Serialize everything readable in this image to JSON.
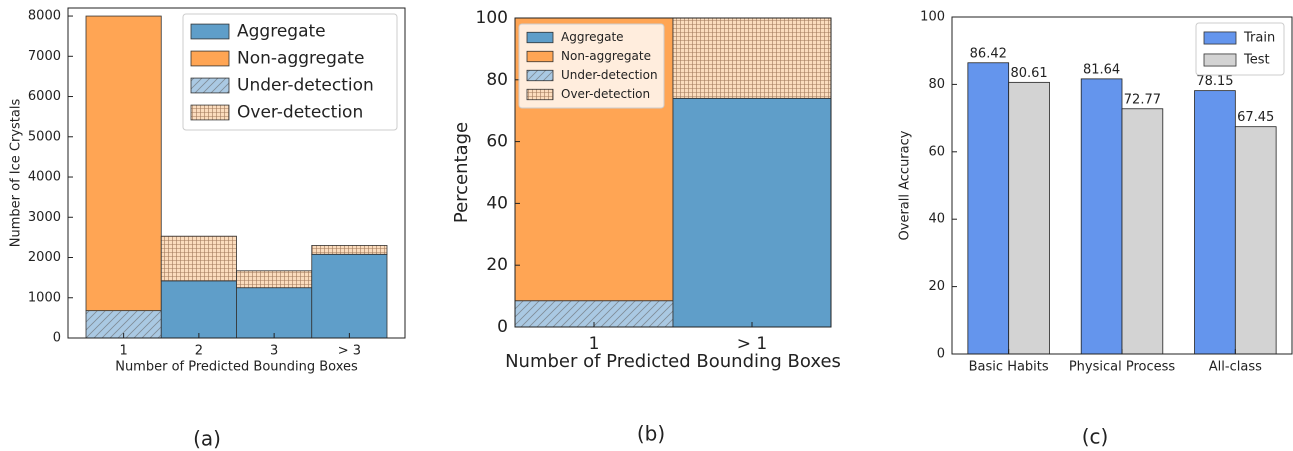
{
  "chart_data": [
    {
      "type": "bar",
      "stacked": true,
      "caption": "(a)",
      "x_label": "Number of Predicted Bounding Boxes",
      "y_label": "Number of Ice Crystals",
      "categories": [
        "1",
        "2",
        "3",
        "> 3"
      ],
      "series": [
        {
          "name": "Aggregate",
          "color": "#5f9ec9",
          "values": [
            null,
            1420,
            1250,
            2080
          ]
        },
        {
          "name": "Non-aggregate",
          "color": "#ffa554",
          "values": [
            7320,
            null,
            null,
            null
          ]
        },
        {
          "name": "Under-detection",
          "color": "#aac9e3",
          "hatch": "diagonal",
          "values": [
            680,
            null,
            null,
            null
          ]
        },
        {
          "name": "Over-detection",
          "color": "#fbdcbd",
          "hatch": "grid",
          "values": [
            null,
            1110,
            420,
            220
          ]
        }
      ],
      "ylim": [
        0,
        8200
      ],
      "yticks": [
        0,
        1000,
        2000,
        3000,
        4000,
        5000,
        6000,
        7000,
        8000
      ],
      "legend": "upper right"
    },
    {
      "type": "bar",
      "stacked": true,
      "caption": "(b)",
      "x_label": "Number of Predicted Bounding Boxes",
      "y_label": "Percentage",
      "categories": [
        "1",
        "> 1"
      ],
      "series": [
        {
          "name": "Aggregate",
          "color": "#5f9ec9",
          "values": [
            null,
            74
          ]
        },
        {
          "name": "Non-aggregate",
          "color": "#ffa554",
          "values": [
            91.5,
            null
          ]
        },
        {
          "name": "Under-detection",
          "color": "#aac9e3",
          "hatch": "diagonal",
          "values": [
            8.5,
            null
          ]
        },
        {
          "name": "Over-detection",
          "color": "#fbdcbd",
          "hatch": "grid",
          "values": [
            null,
            26
          ]
        }
      ],
      "ylim": [
        0,
        100
      ],
      "yticks": [
        0,
        20,
        40,
        60,
        80,
        100
      ],
      "legend": "upper left"
    },
    {
      "type": "bar",
      "stacked": false,
      "caption": "(c)",
      "y_label": "Overall Accuracy",
      "categories": [
        "Basic Habits",
        "Physical Process",
        "All-class"
      ],
      "series": [
        {
          "name": "Train",
          "color": "#6495ed",
          "values": [
            86.42,
            81.64,
            78.15
          ]
        },
        {
          "name": "Test",
          "color": "#d3d3d3",
          "values": [
            80.61,
            72.77,
            67.45
          ]
        }
      ],
      "ylim": [
        0,
        100
      ],
      "yticks": [
        0,
        20,
        40,
        60,
        80,
        100
      ],
      "data_labels": true,
      "legend": "upper right"
    }
  ]
}
